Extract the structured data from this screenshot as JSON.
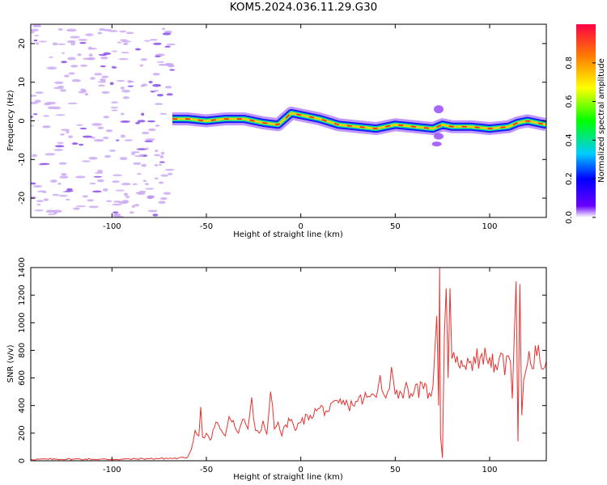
{
  "title": "KOM5.2024.036.11.29.G30",
  "colors": {
    "snr_line": "#e8312e",
    "noise_speckle": "#c9a6f2",
    "noise_dark": "#8a4fe8",
    "axis": "#000000"
  },
  "chart_data": [
    {
      "id": "spectrogram",
      "type": "heatmap",
      "title": "",
      "xlabel": "Height of straight line (km)",
      "ylabel": "Frequency (Hz)",
      "xlim": [
        -143,
        130
      ],
      "ylim": [
        -25,
        25
      ],
      "xticks": [
        -100,
        -50,
        0,
        50,
        100
      ],
      "yticks": [
        -20,
        -10,
        0,
        10,
        20
      ],
      "colormap": "rainbow",
      "grid": false,
      "signal_start_km": -68,
      "ridge_frequency": {
        "x": [
          -68,
          -60,
          -50,
          -40,
          -30,
          -20,
          -12,
          -5,
          0,
          10,
          20,
          30,
          40,
          50,
          60,
          70,
          75,
          80,
          90,
          100,
          110,
          115,
          120,
          130
        ],
        "y": [
          0.5,
          0.5,
          0.0,
          0.5,
          0.5,
          -0.5,
          -1.0,
          2.0,
          1.5,
          0.5,
          -1.0,
          -1.5,
          -2.0,
          -1.0,
          -1.5,
          -2.0,
          -1.0,
          -1.5,
          -1.5,
          -2.0,
          -1.5,
          -0.5,
          0.0,
          -1.0
        ]
      },
      "colorbar": {
        "label": "Normalized spectral amplitude",
        "ticks": [
          "0.0",
          "0.2",
          "0.4",
          "0.6",
          "0.8"
        ],
        "range": [
          0,
          1
        ]
      }
    },
    {
      "id": "snr",
      "type": "line",
      "title": "",
      "xlabel": "Height of straight line (km)",
      "ylabel": "SNR (v/v)",
      "xlim": [
        -143,
        130
      ],
      "ylim": [
        0,
        1400
      ],
      "xticks": [
        -100,
        -50,
        0,
        50,
        100
      ],
      "yticks": [
        0,
        200,
        400,
        600,
        800,
        1000,
        1200,
        1400
      ],
      "grid": false,
      "series": [
        {
          "x": [
            -143,
            -120,
            -100,
            -80,
            -65,
            -60,
            -58,
            -56,
            -54,
            -53,
            -52,
            -50,
            -48,
            -45,
            -42,
            -40,
            -38,
            -35,
            -33,
            -30,
            -28,
            -26,
            -24,
            -22,
            -20,
            -18,
            -16,
            -14,
            -12,
            -10,
            -8,
            -5,
            -3,
            0,
            5,
            10,
            15,
            20,
            25,
            30,
            35,
            40,
            42,
            44,
            46,
            48,
            50,
            55,
            60,
            65,
            68,
            70,
            71,
            72,
            73,
            73.5,
            74,
            75,
            76,
            77,
            78,
            79,
            80,
            82,
            85,
            90,
            95,
            100,
            103,
            105,
            106,
            108,
            110,
            111,
            112,
            113,
            114,
            115,
            116,
            117,
            118,
            120,
            125,
            130
          ],
          "y": [
            10,
            12,
            10,
            15,
            18,
            25,
            80,
            220,
            180,
            390,
            170,
            200,
            150,
            280,
            220,
            180,
            320,
            250,
            200,
            300,
            230,
            460,
            220,
            200,
            290,
            190,
            500,
            230,
            280,
            180,
            260,
            300,
            220,
            280,
            330,
            380,
            360,
            420,
            400,
            430,
            460,
            460,
            620,
            480,
            500,
            680,
            480,
            520,
            500,
            520,
            490,
            540,
            800,
            1050,
            400,
            1400,
            180,
            20,
            900,
            1250,
            600,
            1250,
            740,
            710,
            730,
            720,
            750,
            750,
            700,
            740,
            780,
            620,
            760,
            720,
            450,
            880,
            1300,
            140,
            1280,
            330,
            580,
            700,
            760,
            720
          ]
        }
      ]
    }
  ]
}
